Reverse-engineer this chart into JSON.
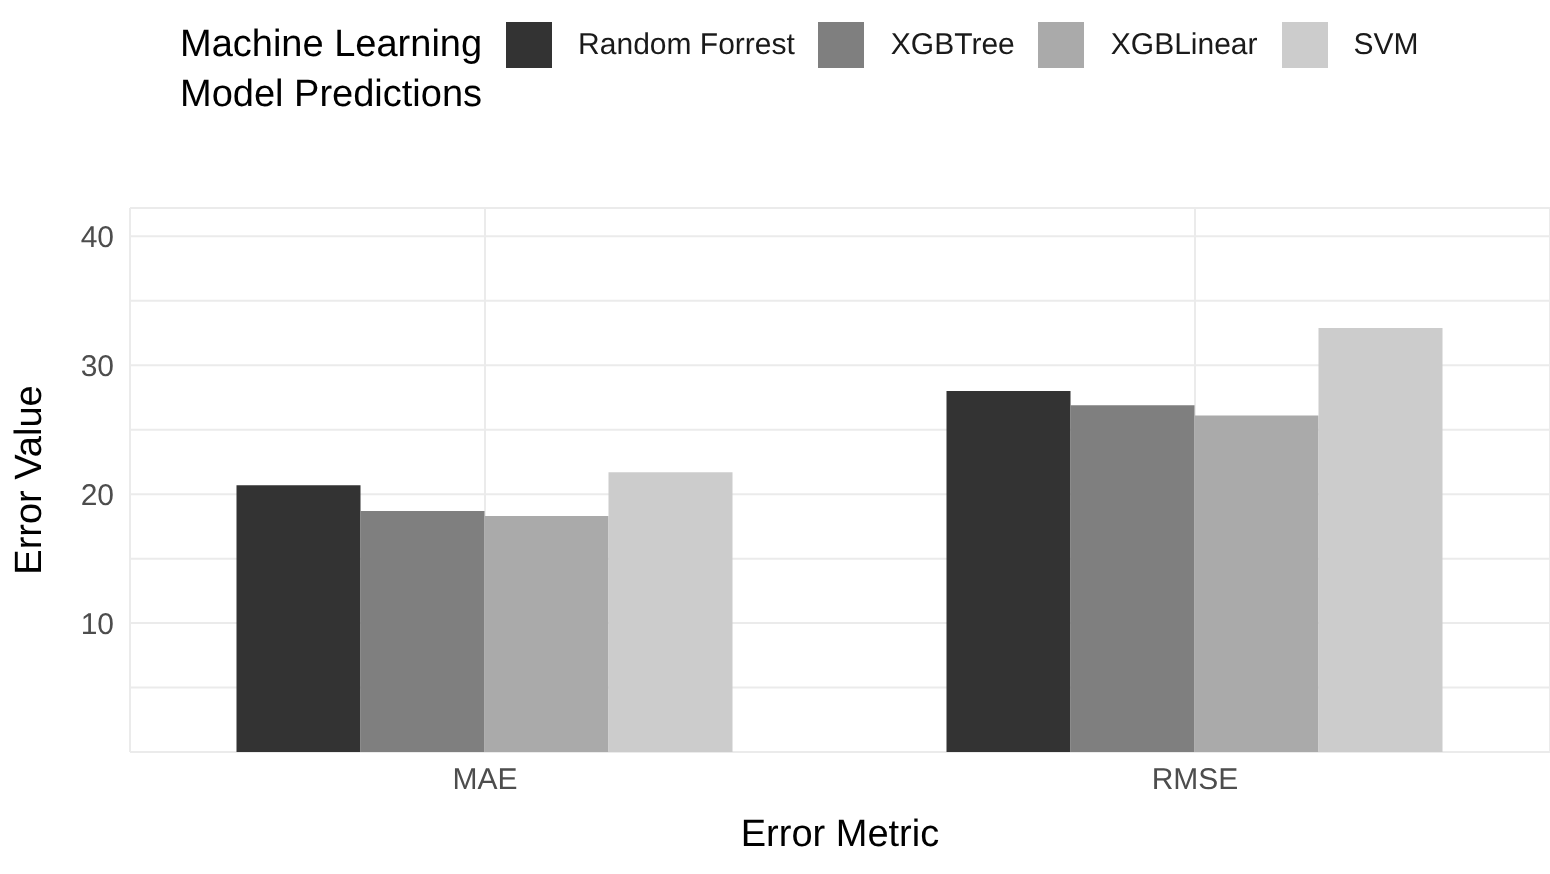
{
  "chart_data": {
    "type": "bar",
    "xlabel": "Error Metric",
    "ylabel": "Error Value",
    "legend_title": "Machine Learning\nModel Predictions",
    "categories": [
      "MAE",
      "RMSE"
    ],
    "series": [
      {
        "name": "Random Forrest",
        "color": "#333333",
        "values": [
          20.7,
          28.0
        ]
      },
      {
        "name": "XGBTree",
        "color": "#7f7f7f",
        "values": [
          18.7,
          26.9
        ]
      },
      {
        "name": "XGBLinear",
        "color": "#aaaaaa",
        "values": [
          18.3,
          26.1
        ]
      },
      {
        "name": "SVM",
        "color": "#cccccc",
        "values": [
          21.7,
          32.9
        ]
      }
    ],
    "ylim": [
      0,
      42.2
    ],
    "yticks": [
      {
        "value": 0,
        "label": null
      },
      {
        "value": 5,
        "label": null
      },
      10,
      {
        "value": 15,
        "label": null
      },
      20,
      {
        "value": 25,
        "label": null
      },
      30,
      {
        "value": 35,
        "label": null
      },
      40
    ],
    "grid": true,
    "legend": "top"
  }
}
